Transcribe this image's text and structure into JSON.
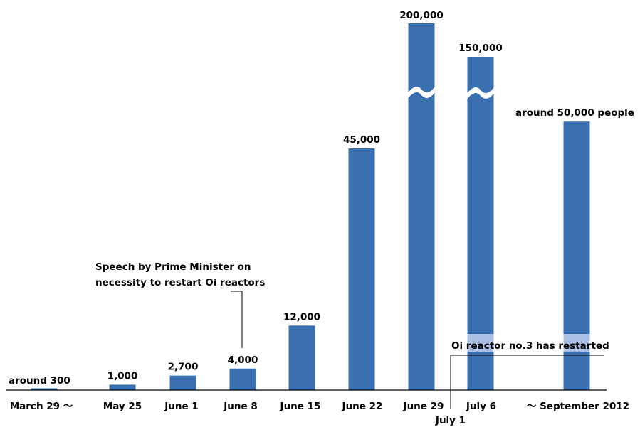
{
  "colors": {
    "bar": "#3a6fb0",
    "highlight": "#a9c0e4",
    "axis": "#000000",
    "background": "#ffffff"
  },
  "chart_data": {
    "type": "bar",
    "title": "",
    "xlabel": "",
    "ylabel": "",
    "grid": false,
    "legend": "none",
    "broken_axis": true,
    "categories": [
      "March 29 ～",
      "May 25",
      "June 1",
      "June 8",
      "June 15",
      "June 22",
      "June 29",
      "July 6",
      "～ September 2012"
    ],
    "values": [
      300,
      1000,
      2700,
      4000,
      12000,
      45000,
      200000,
      150000,
      50000
    ],
    "labels": [
      "around 300",
      "1,000",
      "2,700",
      "4,000",
      "12,000",
      "45,000",
      "200,000",
      "150,000",
      "around 50,000 people"
    ],
    "broken_bars": [
      "June 29",
      "July 6"
    ],
    "annotations": [
      {
        "id": "speech",
        "lines": [
          "Speech by Prime Minister on",
          "necessity to restart Oi reactors"
        ],
        "target": "June 8"
      },
      {
        "id": "restart",
        "text": "Oi reactor no.3 has restarted",
        "date_label": "July 1",
        "highlighted_bars": [
          "July 6",
          "～ September 2012"
        ]
      }
    ]
  }
}
